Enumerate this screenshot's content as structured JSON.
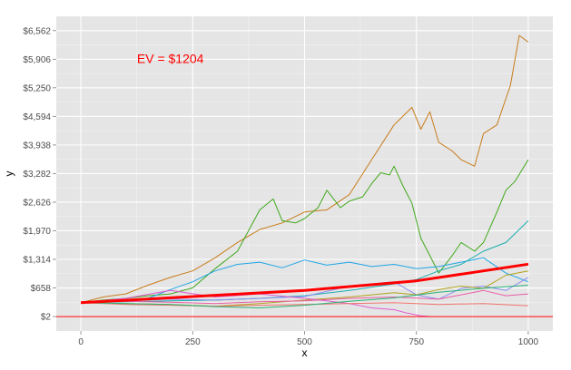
{
  "colors": {
    "panel": "#e5e5e5",
    "grid_major": "#ffffff",
    "grid_minor": "#f2f2f2",
    "ev_line": "#ff0000",
    "baseline": "#ff0000",
    "tick_text": "#4d4d4d"
  },
  "chart_data": {
    "type": "line",
    "title": "",
    "xlabel": "x",
    "ylabel": "y",
    "xlim": [
      -55,
      1055
    ],
    "ylim": [
      -330,
      6890
    ],
    "x_ticks": [
      0,
      250,
      500,
      750,
      1000
    ],
    "x_tick_labels": [
      "0",
      "250",
      "500",
      "750",
      "1000"
    ],
    "y_ticks": [
      2,
      658,
      1314,
      1970,
      2626,
      3282,
      3938,
      4594,
      5250,
      5906,
      6562
    ],
    "y_tick_labels": [
      "$2",
      "$658",
      "$1,314",
      "$1,970",
      "$2,626",
      "$3,282",
      "$3,938",
      "$4,594",
      "$5,250",
      "$5,906",
      "$6,562"
    ],
    "grid": true,
    "legend": "none",
    "annotation": {
      "text": "EV = $1204",
      "x": 200,
      "y": 5820,
      "color": "#ff0000"
    },
    "hline": {
      "y": 0,
      "color": "#ff0000"
    },
    "ev_line": {
      "color": "#ff0000",
      "x": [
        0,
        250,
        500,
        750,
        1000
      ],
      "y": [
        320,
        460,
        600,
        820,
        1204
      ]
    },
    "series": [
      {
        "color": "#c77c1a",
        "x": [
          0,
          50,
          100,
          150,
          200,
          250,
          300,
          350,
          400,
          450,
          500,
          550,
          600,
          650,
          700,
          740,
          760,
          780,
          800,
          830,
          850,
          880,
          900,
          930,
          960,
          980,
          1000
        ],
        "y": [
          320,
          450,
          520,
          720,
          900,
          1050,
          1350,
          1700,
          2000,
          2150,
          2400,
          2450,
          2800,
          3600,
          4400,
          4800,
          4300,
          4700,
          4000,
          3800,
          3600,
          3450,
          4200,
          4400,
          5300,
          6450,
          6300
        ]
      },
      {
        "color": "#3fa81a",
        "x": [
          0,
          50,
          100,
          150,
          200,
          250,
          300,
          350,
          400,
          430,
          450,
          480,
          500,
          530,
          550,
          580,
          600,
          630,
          650,
          670,
          690,
          700,
          720,
          740,
          760,
          780,
          800,
          830,
          850,
          880,
          900,
          930,
          950,
          970,
          1000
        ],
        "y": [
          320,
          380,
          420,
          480,
          520,
          660,
          1100,
          1500,
          2450,
          2700,
          2200,
          2150,
          2250,
          2500,
          2900,
          2500,
          2650,
          2750,
          3050,
          3300,
          3250,
          3450,
          3000,
          2600,
          1800,
          1400,
          1000,
          1400,
          1700,
          1500,
          1700,
          2400,
          2900,
          3100,
          3600
        ]
      },
      {
        "color": "#1fa6e6",
        "x": [
          0,
          50,
          100,
          150,
          200,
          250,
          300,
          350,
          400,
          450,
          500,
          550,
          600,
          650,
          700,
          750,
          800,
          850,
          900,
          950,
          1000
        ],
        "y": [
          320,
          360,
          380,
          420,
          620,
          800,
          1050,
          1200,
          1250,
          1120,
          1300,
          1180,
          1250,
          1150,
          1200,
          1100,
          1150,
          1250,
          1350,
          1000,
          800
        ]
      },
      {
        "color": "#1aaeb0",
        "x": [
          0,
          100,
          200,
          300,
          400,
          500,
          600,
          700,
          750,
          800,
          850,
          900,
          950,
          1000
        ],
        "y": [
          320,
          340,
          360,
          380,
          420,
          480,
          600,
          750,
          850,
          1050,
          1200,
          1500,
          1700,
          2200
        ]
      },
      {
        "color": "#8c8cf2",
        "x": [
          0,
          100,
          200,
          300,
          400,
          500,
          600,
          700,
          750,
          800,
          850,
          900,
          950,
          1000
        ],
        "y": [
          320,
          360,
          400,
          380,
          420,
          460,
          700,
          800,
          500,
          400,
          650,
          700,
          600,
          900
        ]
      },
      {
        "color": "#b2a21a",
        "x": [
          0,
          100,
          200,
          300,
          400,
          500,
          600,
          700,
          750,
          800,
          850,
          900,
          950,
          1000
        ],
        "y": [
          320,
          300,
          280,
          240,
          300,
          380,
          450,
          550,
          500,
          620,
          700,
          650,
          950,
          1050
        ]
      },
      {
        "color": "#e05ad1",
        "x": [
          0,
          100,
          200,
          300,
          400,
          500,
          600,
          650,
          700,
          730,
          760,
          780
        ],
        "y": [
          320,
          420,
          600,
          450,
          520,
          420,
          300,
          200,
          160,
          80,
          20,
          2
        ]
      },
      {
        "color": "#ea5ca5",
        "x": [
          0,
          100,
          200,
          300,
          400,
          500,
          600,
          700,
          800,
          900,
          950,
          1000
        ],
        "y": [
          320,
          350,
          330,
          300,
          340,
          360,
          420,
          450,
          400,
          600,
          480,
          520
        ]
      },
      {
        "color": "#f0726b",
        "x": [
          0,
          100,
          200,
          300,
          400,
          500,
          600,
          700,
          800,
          900,
          1000
        ],
        "y": [
          320,
          280,
          260,
          240,
          260,
          280,
          300,
          320,
          280,
          300,
          250
        ]
      },
      {
        "color": "#29b477",
        "x": [
          0,
          100,
          200,
          300,
          400,
          500,
          600,
          700,
          800,
          900,
          1000
        ],
        "y": [
          320,
          300,
          280,
          230,
          200,
          260,
          350,
          430,
          560,
          650,
          720
        ]
      }
    ]
  }
}
